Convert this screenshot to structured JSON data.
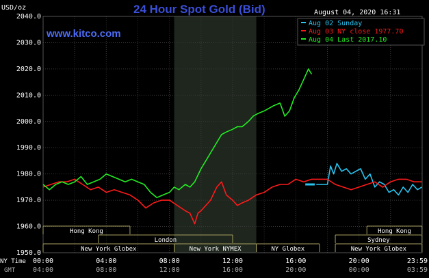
{
  "header": {
    "unit": "USD/oz",
    "title": "24 Hour Spot Gold (Bid)",
    "timestamp": "August 04, 2020 16:31",
    "site": "www.kitco.com"
  },
  "colors": {
    "background": "#000000",
    "grid": "#3a3a3a",
    "title": "#3b4fd8",
    "site": "#4c6cf5",
    "axis_text": "#ffffff",
    "aug02": "#29c4f0",
    "aug03": "#ff1a1a",
    "aug04": "#22ee22",
    "session_shade": "#1e261e",
    "market_border": "#a8a060"
  },
  "legend": [
    {
      "key": "aug02",
      "label": "Aug 02 Sunday"
    },
    {
      "key": "aug03",
      "label": "Aug 03 NY close 1977.70"
    },
    {
      "key": "aug04",
      "label": "Aug 04 Last 2017.10"
    }
  ],
  "row_labels": {
    "ny_time": "NY Time",
    "gmt": "GMT"
  },
  "chart_data": {
    "type": "line",
    "title": "24 Hour Spot Gold (Bid)",
    "ylabel": "USD/oz",
    "xlabel": "",
    "ylim": [
      1950,
      2040
    ],
    "yticks": [
      1950,
      1960,
      1970,
      1980,
      1990,
      2000,
      2010,
      2020,
      2030,
      2040
    ],
    "ytick_labels": [
      "1950.0",
      "1960.0",
      "1970.0",
      "1980.0",
      "1990.0",
      "2000.0",
      "2010.0",
      "2020.0",
      "2030.0",
      "2040.0"
    ],
    "xlim": [
      0,
      24
    ],
    "xticks": [
      0,
      4,
      8,
      12,
      16,
      20,
      24
    ],
    "xtick_labels_ny": [
      "00:00",
      "04:00",
      "08:00",
      "12:00",
      "16:00",
      "20:00",
      "23:59"
    ],
    "xtick_labels_gmt": [
      "04:00",
      "08:00",
      "12:00",
      "16:00",
      "20:00",
      "00:00",
      "03:59"
    ],
    "grid": true,
    "legend_position": "top-right",
    "shaded_session": [
      8.3,
      13.5
    ],
    "series": [
      {
        "name": "Aug 02 Sunday",
        "color_key": "aug02",
        "x": [
          17.3,
          18.0,
          18.2,
          18.4,
          18.6,
          18.9,
          19.2,
          19.5,
          19.8,
          20.1,
          20.4,
          20.7,
          21.0,
          21.3,
          21.6,
          21.9,
          22.2,
          22.5,
          22.8,
          23.1,
          23.4,
          23.7,
          23.98
        ],
        "y": [
          1976,
          1976,
          1983,
          1980,
          1984,
          1981,
          1982,
          1980,
          1981,
          1982,
          1978,
          1980,
          1975,
          1977,
          1976,
          1973,
          1974,
          1972,
          1975,
          1973,
          1976,
          1974,
          1975
        ]
      },
      {
        "name": "Aug 03 NY close 1977.70",
        "color_key": "aug03",
        "x": [
          0,
          0.5,
          1.0,
          1.5,
          2.0,
          2.5,
          3.0,
          3.5,
          4.0,
          4.5,
          5.0,
          5.5,
          6.0,
          6.5,
          7.0,
          7.5,
          8.0,
          8.5,
          9.0,
          9.3,
          9.6,
          9.8,
          10.0,
          10.3,
          10.6,
          11.0,
          11.3,
          11.6,
          12.0,
          12.3,
          12.6,
          13.0,
          13.5,
          14.0,
          14.5,
          15.0,
          15.5,
          16.0,
          16.5,
          17.0,
          17.5,
          18.0,
          18.5,
          19.0,
          19.5,
          20.0,
          20.5,
          21.0,
          21.5,
          22.0,
          22.5,
          23.0,
          23.5,
          23.98
        ],
        "y": [
          1975,
          1976,
          1977,
          1977,
          1978,
          1976,
          1974,
          1975,
          1973,
          1974,
          1973,
          1972,
          1970,
          1967,
          1969,
          1970,
          1970,
          1968,
          1966,
          1965,
          1961,
          1965,
          1966,
          1968,
          1970,
          1975,
          1977,
          1972,
          1970,
          1968,
          1969,
          1970,
          1972,
          1973,
          1975,
          1976,
          1976,
          1978,
          1977,
          1978,
          1978,
          1978,
          1976,
          1975,
          1974,
          1975,
          1976,
          1977,
          1975,
          1977,
          1978,
          1978,
          1977,
          1977
        ]
      },
      {
        "name": "Aug 04 Last 2017.10",
        "color_key": "aug04",
        "x": [
          0,
          0.4,
          0.8,
          1.2,
          1.6,
          2.0,
          2.4,
          2.8,
          3.2,
          3.6,
          4.0,
          4.4,
          4.8,
          5.2,
          5.6,
          6.0,
          6.4,
          6.8,
          7.2,
          7.6,
          8.0,
          8.3,
          8.6,
          9.0,
          9.3,
          9.6,
          10.0,
          10.3,
          10.6,
          11.0,
          11.3,
          11.6,
          12.0,
          12.3,
          12.6,
          13.0,
          13.3,
          13.6,
          14.0,
          14.3,
          14.6,
          15.0,
          15.3,
          15.6,
          15.9,
          16.2,
          16.5,
          16.8,
          17.0
        ],
        "y": [
          1976,
          1974,
          1976,
          1977,
          1976,
          1977,
          1979,
          1976,
          1977,
          1978,
          1980,
          1979,
          1978,
          1977,
          1978,
          1977,
          1976,
          1973,
          1971,
          1972,
          1973,
          1975,
          1974,
          1976,
          1975,
          1977,
          1982,
          1985,
          1988,
          1992,
          1995,
          1996,
          1997,
          1998,
          1998,
          2000,
          2002,
          2003,
          2004,
          2005,
          2006,
          2007,
          2002,
          2004,
          2009,
          2012,
          2016,
          2020,
          2018
        ]
      },
      {
        "name": "",
        "color_key": "aug02",
        "x": [
          16.6,
          17.2
        ],
        "y": [
          1976,
          1976
        ]
      }
    ]
  },
  "markets": [
    {
      "name": "Hong Kong",
      "start": 0,
      "end": 5.5,
      "row": 0
    },
    {
      "name": "London",
      "start": 3.5,
      "end": 12.0,
      "row": 1
    },
    {
      "name": "New York Globex",
      "start": 0,
      "end": 8.3,
      "row": 2
    },
    {
      "name": "New York NYMEX",
      "start": 8.3,
      "end": 13.5,
      "row": 2
    },
    {
      "name": "NY Globex",
      "start": 13.5,
      "end": 17.5,
      "row": 2
    },
    {
      "name": "Hong Kong",
      "start": 20.5,
      "end": 23.99,
      "row": 0
    },
    {
      "name": "Sydney",
      "start": 18.5,
      "end": 23.99,
      "row": 1
    },
    {
      "name": "New York Globex",
      "start": 18.5,
      "end": 23.99,
      "row": 2
    }
  ]
}
